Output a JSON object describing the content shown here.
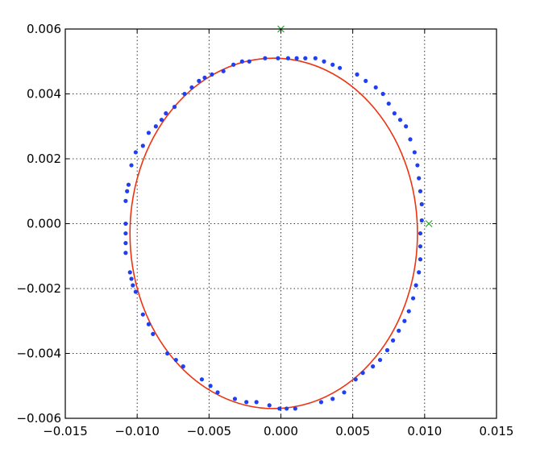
{
  "chart_data": {
    "type": "scatter",
    "title": "",
    "xlabel": "",
    "ylabel": "",
    "xlim": [
      -0.015,
      0.015
    ],
    "ylim": [
      -0.006,
      0.006
    ],
    "grid": true,
    "x_ticks": [
      -0.015,
      -0.01,
      -0.005,
      0.0,
      0.005,
      0.01,
      0.015
    ],
    "x_tick_labels": [
      "−0.015",
      "−0.010",
      "−0.005",
      "0.000",
      "0.005",
      "0.010",
      "0.015"
    ],
    "y_ticks": [
      -0.006,
      -0.004,
      -0.002,
      0.0,
      0.002,
      0.004,
      0.006
    ],
    "y_tick_labels": [
      "−0.006",
      "−0.004",
      "−0.002",
      "0.000",
      "0.002",
      "0.004",
      "0.006"
    ],
    "series": [
      {
        "kind": "scatter",
        "color": "#1f3ff0",
        "marker": "dot",
        "points": [
          [
            -0.0108,
            0.0007
          ],
          [
            -0.0107,
            0.001
          ],
          [
            -0.0106,
            0.0012
          ],
          [
            -0.0104,
            0.0018
          ],
          [
            -0.0101,
            0.0022
          ],
          [
            -0.0096,
            0.0024
          ],
          [
            -0.0092,
            0.0028
          ],
          [
            -0.0087,
            0.003
          ],
          [
            -0.0083,
            0.0032
          ],
          [
            -0.008,
            0.0034
          ],
          [
            -0.0074,
            0.0036
          ],
          [
            -0.0067,
            0.004
          ],
          [
            -0.0062,
            0.0042
          ],
          [
            -0.0057,
            0.0044
          ],
          [
            -0.0053,
            0.0045
          ],
          [
            -0.0048,
            0.0046
          ],
          [
            -0.004,
            0.0047
          ],
          [
            -0.0033,
            0.0049
          ],
          [
            -0.0027,
            0.005
          ],
          [
            -0.0022,
            0.005
          ],
          [
            -0.0011,
            0.0051
          ],
          [
            -0.0002,
            0.0051
          ],
          [
            0.0005,
            0.0051
          ],
          [
            0.0011,
            0.0051
          ],
          [
            0.0017,
            0.0051
          ],
          [
            0.0024,
            0.0051
          ],
          [
            0.003,
            0.005
          ],
          [
            0.0036,
            0.0049
          ],
          [
            0.0041,
            0.0048
          ],
          [
            0.0053,
            0.0046
          ],
          [
            0.0059,
            0.0044
          ],
          [
            0.0066,
            0.0042
          ],
          [
            0.0071,
            0.004
          ],
          [
            0.0075,
            0.0037
          ],
          [
            0.0079,
            0.0034
          ],
          [
            0.0083,
            0.0032
          ],
          [
            0.0087,
            0.003
          ],
          [
            0.009,
            0.0026
          ],
          [
            0.0093,
            0.0022
          ],
          [
            0.0095,
            0.0018
          ],
          [
            0.0096,
            0.0014
          ],
          [
            0.0097,
            0.001
          ],
          [
            0.0098,
            0.0006
          ],
          [
            0.0098,
            0.0001
          ],
          [
            0.0097,
            -0.0003
          ],
          [
            0.0097,
            -0.0007
          ],
          [
            0.0097,
            -0.0011
          ],
          [
            0.0096,
            -0.0015
          ],
          [
            0.0094,
            -0.0019
          ],
          [
            0.0092,
            -0.0023
          ],
          [
            0.0089,
            -0.0027
          ],
          [
            0.0086,
            -0.003
          ],
          [
            0.0082,
            -0.0033
          ],
          [
            0.0078,
            -0.0036
          ],
          [
            0.0074,
            -0.0039
          ],
          [
            0.0069,
            -0.0042
          ],
          [
            0.0064,
            -0.0044
          ],
          [
            0.0057,
            -0.0046
          ],
          [
            0.0052,
            -0.0048
          ],
          [
            0.0044,
            -0.0052
          ],
          [
            0.0036,
            -0.0054
          ],
          [
            0.0028,
            -0.0055
          ],
          [
            0.001,
            -0.0057
          ],
          [
            0.0004,
            -0.0057
          ],
          [
            -0.0001,
            -0.0057
          ],
          [
            -0.0008,
            -0.0056
          ],
          [
            -0.0017,
            -0.0055
          ],
          [
            -0.0024,
            -0.0055
          ],
          [
            -0.0032,
            -0.0054
          ],
          [
            -0.0044,
            -0.0052
          ],
          [
            -0.0049,
            -0.005
          ],
          [
            -0.0055,
            -0.0048
          ],
          [
            -0.0068,
            -0.0044
          ],
          [
            -0.0073,
            -0.0042
          ],
          [
            -0.0079,
            -0.004
          ],
          [
            -0.0089,
            -0.0034
          ],
          [
            -0.0092,
            -0.0031
          ],
          [
            -0.0096,
            -0.0028
          ],
          [
            -0.0101,
            -0.0021
          ],
          [
            -0.0103,
            -0.0019
          ],
          [
            -0.0104,
            -0.0017
          ],
          [
            -0.0105,
            -0.0015
          ],
          [
            -0.0108,
            -0.0009
          ],
          [
            -0.0108,
            -0.0006
          ],
          [
            -0.0108,
            -0.0003
          ],
          [
            -0.0108,
            0.0
          ]
        ]
      },
      {
        "kind": "ellipse",
        "color": "#ee3311",
        "center": [
          -0.0005,
          -0.0003
        ],
        "rx": 0.01,
        "ry": 0.0054
      },
      {
        "kind": "markers",
        "color": "#22aa22",
        "marker": "x",
        "points": [
          [
            0.0103,
            0.0
          ],
          [
            0.0,
            0.006
          ]
        ]
      }
    ]
  }
}
